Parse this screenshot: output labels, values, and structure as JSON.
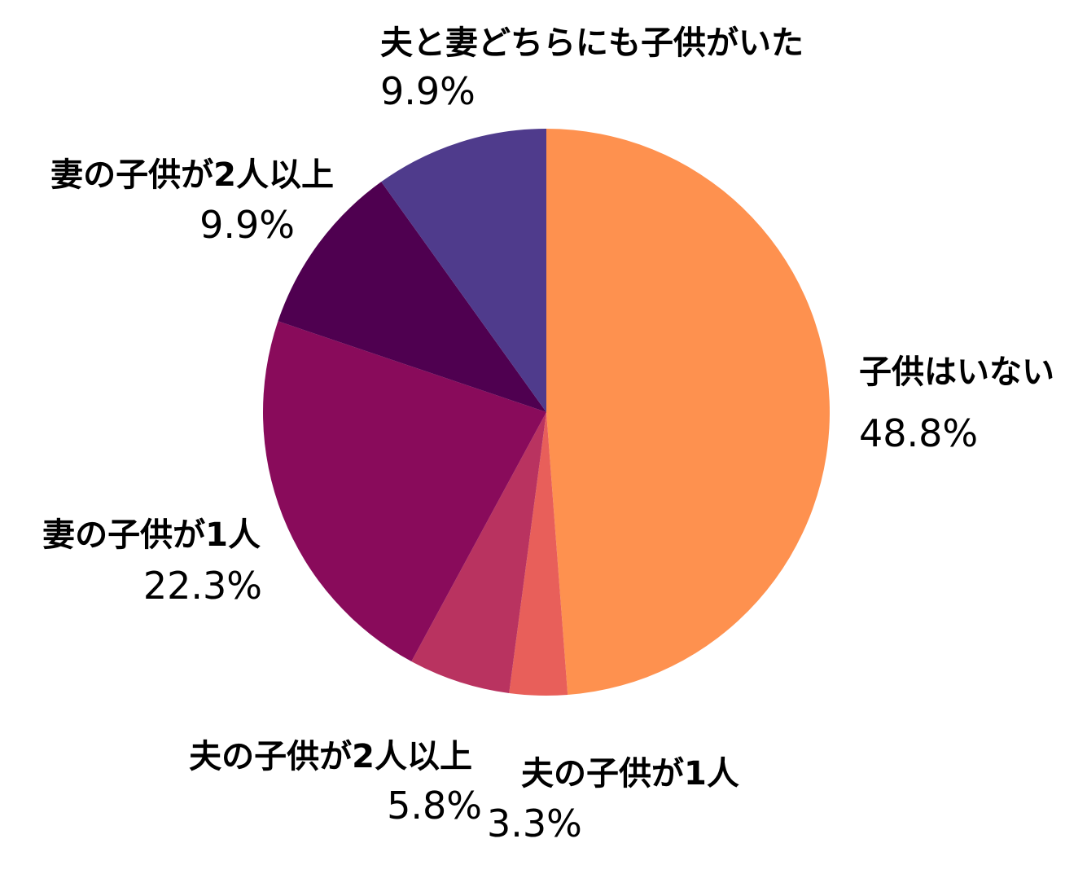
{
  "chart_data": {
    "type": "pie",
    "start_angle_deg": 0,
    "direction": "clockwise",
    "slices": [
      {
        "label": "子供はいない",
        "value_text": "48.8%",
        "value": 48.8,
        "color": "#FE914F"
      },
      {
        "label": "夫の子供が1人",
        "value_text": "3.3%",
        "value": 3.3,
        "color": "#E85F5A"
      },
      {
        "label": "夫の子供が2人以上",
        "value_text": "5.8%",
        "value": 5.8,
        "color": "#B93360"
      },
      {
        "label": "妻の子供が1人",
        "value_text": "22.3%",
        "value": 22.3,
        "color": "#890B5B"
      },
      {
        "label": "妻の子供が2人以上",
        "value_text": "9.9%",
        "value": 9.9,
        "color": "#4F0050"
      },
      {
        "label": "夫と妻どちらにも子供がいた",
        "value_text": "9.9%",
        "value": 9.9,
        "color": "#4F3B8C"
      }
    ]
  }
}
